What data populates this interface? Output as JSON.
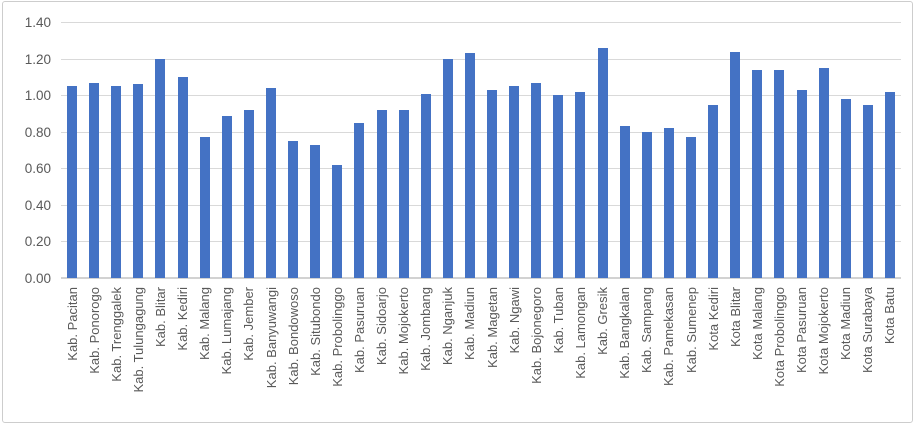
{
  "chart_data": {
    "type": "bar",
    "title": "",
    "xlabel": "",
    "ylabel": "",
    "legend": false,
    "grid": true,
    "ylim": [
      0.0,
      1.4
    ],
    "ytick_step": 0.2,
    "yticks": [
      0.0,
      0.2,
      0.4,
      0.6,
      0.8,
      1.0,
      1.2,
      1.4
    ],
    "ytick_labels": [
      "0.00",
      "0.20",
      "0.40",
      "0.60",
      "0.80",
      "1.00",
      "1.20",
      "1.40"
    ],
    "categories": [
      "Kab. Pacitan",
      "Kab. Ponorogo",
      "Kab. Trenggalek",
      "Kab. Tulungagung",
      "Kab. Blitar",
      "Kab. Kediri",
      "Kab. Malang",
      "Kab. Lumajang",
      "Kab. Jember",
      "Kab. Banyuwangi",
      "Kab. Bondowoso",
      "Kab. Situbondo",
      "Kab. Probolinggo",
      "Kab. Pasuruan",
      "Kab. Sidoarjo",
      "Kab. Mojokerto",
      "Kab. Jombang",
      "Kab. Nganjuk",
      "Kab. Madiun",
      "Kab. Magetan",
      "Kab. Ngawi",
      "Kab. Bojonegoro",
      "Kab. Tuban",
      "Kab. Lamongan",
      "Kab. Gresik",
      "Kab. Bangkalan",
      "Kab. Sampang",
      "Kab. Pamekasan",
      "Kab. Sumenep",
      "Kota Kediri",
      "Kota Blitar",
      "Kota Malang",
      "Kota Probolinggo",
      "Kota Pasuruan",
      "Kota Mojokerto",
      "Kota Madiun",
      "Kota Surabaya",
      "Kota Batu"
    ],
    "values": [
      1.05,
      1.07,
      1.05,
      1.06,
      1.2,
      1.1,
      0.77,
      0.89,
      0.92,
      1.04,
      0.75,
      0.73,
      0.62,
      0.85,
      0.92,
      0.92,
      1.01,
      1.2,
      1.23,
      1.03,
      1.05,
      1.07,
      1.0,
      1.02,
      1.26,
      0.83,
      0.8,
      0.82,
      0.77,
      0.95,
      1.24,
      1.14,
      1.14,
      1.03,
      1.15,
      0.98,
      0.95,
      1.02
    ],
    "colors": {
      "bar": "#4472c4",
      "gridline": "#d9d9d9",
      "axis_line": "#d2d2d2",
      "tick_label": "#595959",
      "frame_border": "#cdcdcd",
      "background": "#ffffff"
    }
  }
}
